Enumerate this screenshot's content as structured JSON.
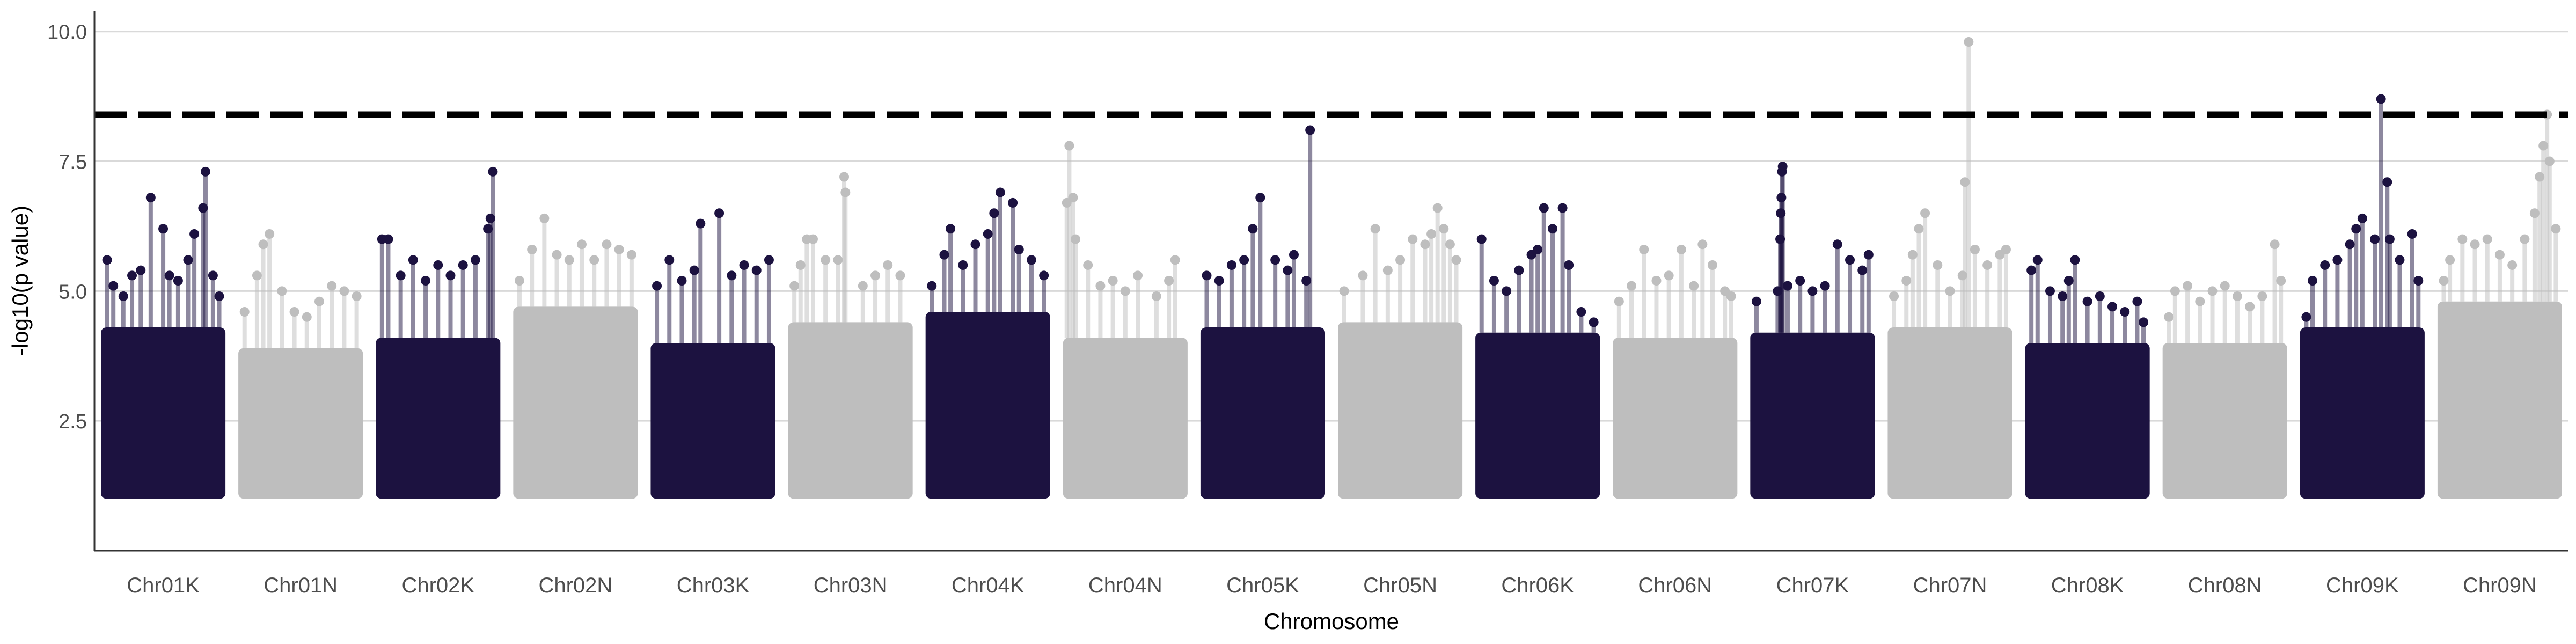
{
  "chart_data": {
    "type": "scatter",
    "title": "",
    "xlabel": "Chromosome",
    "ylabel": "-log10(p value)",
    "ylim": [
      0.0,
      10.4
    ],
    "yticks": [
      2.5,
      5.0,
      7.5,
      10.0
    ],
    "ytick_labels": [
      "2.5",
      "5.0",
      "7.5",
      "10.0"
    ],
    "grid": "horizontal-major",
    "threshold": 8.4,
    "colors": {
      "dark": "#1c1240",
      "light": "#bebebe",
      "threshold": "#000000",
      "grid": "#d9d9d9",
      "axis": "#333333"
    },
    "series": [
      {
        "name": "Chr01K",
        "color": "dark",
        "baseline_top": 4.3,
        "points": [
          [
            0.05,
            5.6
          ],
          [
            0.1,
            5.1
          ],
          [
            0.18,
            4.9
          ],
          [
            0.25,
            5.3
          ],
          [
            0.32,
            5.4
          ],
          [
            0.4,
            6.8
          ],
          [
            0.5,
            6.2
          ],
          [
            0.55,
            5.3
          ],
          [
            0.62,
            5.2
          ],
          [
            0.7,
            5.6
          ],
          [
            0.75,
            6.1
          ],
          [
            0.82,
            6.6
          ],
          [
            0.84,
            7.3
          ],
          [
            0.9,
            5.3
          ],
          [
            0.95,
            4.9
          ]
        ]
      },
      {
        "name": "Chr01N",
        "color": "light",
        "baseline_top": 3.9,
        "points": [
          [
            0.05,
            4.6
          ],
          [
            0.15,
            5.3
          ],
          [
            0.2,
            5.9
          ],
          [
            0.25,
            6.1
          ],
          [
            0.35,
            5.0
          ],
          [
            0.45,
            4.6
          ],
          [
            0.55,
            4.5
          ],
          [
            0.65,
            4.8
          ],
          [
            0.75,
            5.1
          ],
          [
            0.85,
            5.0
          ],
          [
            0.95,
            4.9
          ]
        ]
      },
      {
        "name": "Chr02K",
        "color": "dark",
        "baseline_top": 4.1,
        "points": [
          [
            0.05,
            6.0
          ],
          [
            0.1,
            6.0
          ],
          [
            0.2,
            5.3
          ],
          [
            0.3,
            5.6
          ],
          [
            0.4,
            5.2
          ],
          [
            0.5,
            5.5
          ],
          [
            0.6,
            5.3
          ],
          [
            0.7,
            5.5
          ],
          [
            0.8,
            5.6
          ],
          [
            0.9,
            6.2
          ],
          [
            0.92,
            6.4
          ],
          [
            0.94,
            7.3
          ]
        ]
      },
      {
        "name": "Chr02N",
        "color": "light",
        "baseline_top": 4.7,
        "points": [
          [
            0.05,
            5.2
          ],
          [
            0.15,
            5.8
          ],
          [
            0.25,
            6.4
          ],
          [
            0.35,
            5.7
          ],
          [
            0.45,
            5.6
          ],
          [
            0.55,
            5.9
          ],
          [
            0.65,
            5.6
          ],
          [
            0.75,
            5.9
          ],
          [
            0.85,
            5.8
          ],
          [
            0.95,
            5.7
          ]
        ]
      },
      {
        "name": "Chr03K",
        "color": "dark",
        "baseline_top": 4.0,
        "points": [
          [
            0.05,
            5.1
          ],
          [
            0.15,
            5.6
          ],
          [
            0.25,
            5.2
          ],
          [
            0.35,
            5.4
          ],
          [
            0.4,
            6.3
          ],
          [
            0.55,
            6.5
          ],
          [
            0.65,
            5.3
          ],
          [
            0.75,
            5.5
          ],
          [
            0.85,
            5.4
          ],
          [
            0.95,
            5.6
          ]
        ]
      },
      {
        "name": "Chr03N",
        "color": "light",
        "baseline_top": 4.4,
        "points": [
          [
            0.05,
            5.1
          ],
          [
            0.1,
            5.5
          ],
          [
            0.15,
            6.0
          ],
          [
            0.2,
            6.0
          ],
          [
            0.3,
            5.6
          ],
          [
            0.4,
            5.6
          ],
          [
            0.45,
            7.2
          ],
          [
            0.46,
            6.9
          ],
          [
            0.6,
            5.1
          ],
          [
            0.7,
            5.3
          ],
          [
            0.8,
            5.5
          ],
          [
            0.9,
            5.3
          ]
        ]
      },
      {
        "name": "Chr04K",
        "color": "dark",
        "baseline_top": 4.6,
        "points": [
          [
            0.05,
            5.1
          ],
          [
            0.15,
            5.7
          ],
          [
            0.2,
            6.2
          ],
          [
            0.3,
            5.5
          ],
          [
            0.4,
            5.9
          ],
          [
            0.5,
            6.1
          ],
          [
            0.55,
            6.5
          ],
          [
            0.6,
            6.9
          ],
          [
            0.7,
            6.7
          ],
          [
            0.75,
            5.8
          ],
          [
            0.85,
            5.6
          ],
          [
            0.95,
            5.3
          ]
        ]
      },
      {
        "name": "Chr04N",
        "color": "light",
        "baseline_top": 4.1,
        "points": [
          [
            0.03,
            6.7
          ],
          [
            0.05,
            7.8
          ],
          [
            0.08,
            6.8
          ],
          [
            0.1,
            6.0
          ],
          [
            0.2,
            5.5
          ],
          [
            0.3,
            5.1
          ],
          [
            0.4,
            5.2
          ],
          [
            0.5,
            5.0
          ],
          [
            0.6,
            5.3
          ],
          [
            0.75,
            4.9
          ],
          [
            0.85,
            5.2
          ],
          [
            0.9,
            5.6
          ]
        ]
      },
      {
        "name": "Chr05K",
        "color": "dark",
        "baseline_top": 4.3,
        "points": [
          [
            0.05,
            5.3
          ],
          [
            0.15,
            5.2
          ],
          [
            0.25,
            5.5
          ],
          [
            0.35,
            5.6
          ],
          [
            0.42,
            6.2
          ],
          [
            0.48,
            6.8
          ],
          [
            0.6,
            5.6
          ],
          [
            0.7,
            5.4
          ],
          [
            0.75,
            5.7
          ],
          [
            0.85,
            5.2
          ],
          [
            0.88,
            8.1
          ]
        ]
      },
      {
        "name": "Chr05N",
        "color": "light",
        "baseline_top": 4.4,
        "points": [
          [
            0.05,
            5.0
          ],
          [
            0.2,
            5.3
          ],
          [
            0.3,
            6.2
          ],
          [
            0.4,
            5.4
          ],
          [
            0.5,
            5.6
          ],
          [
            0.6,
            6.0
          ],
          [
            0.7,
            5.9
          ],
          [
            0.75,
            6.1
          ],
          [
            0.8,
            6.6
          ],
          [
            0.85,
            6.2
          ],
          [
            0.9,
            5.9
          ],
          [
            0.95,
            5.6
          ]
        ]
      },
      {
        "name": "Chr06K",
        "color": "dark",
        "baseline_top": 4.2,
        "points": [
          [
            0.05,
            6.0
          ],
          [
            0.15,
            5.2
          ],
          [
            0.25,
            5.0
          ],
          [
            0.35,
            5.4
          ],
          [
            0.45,
            5.7
          ],
          [
            0.5,
            5.8
          ],
          [
            0.55,
            6.6
          ],
          [
            0.62,
            6.2
          ],
          [
            0.7,
            6.6
          ],
          [
            0.75,
            5.5
          ],
          [
            0.85,
            4.6
          ],
          [
            0.95,
            4.4
          ]
        ]
      },
      {
        "name": "Chr06N",
        "color": "light",
        "baseline_top": 4.1,
        "points": [
          [
            0.05,
            4.8
          ],
          [
            0.15,
            5.1
          ],
          [
            0.25,
            5.8
          ],
          [
            0.35,
            5.2
          ],
          [
            0.45,
            5.3
          ],
          [
            0.55,
            5.8
          ],
          [
            0.65,
            5.1
          ],
          [
            0.72,
            5.9
          ],
          [
            0.8,
            5.5
          ],
          [
            0.9,
            5.0
          ],
          [
            0.95,
            4.9
          ]
        ]
      },
      {
        "name": "Chr07K",
        "color": "dark",
        "baseline_top": 4.2,
        "points": [
          [
            0.05,
            4.8
          ],
          [
            0.22,
            5.0
          ],
          [
            0.24,
            6.0
          ],
          [
            0.245,
            6.5
          ],
          [
            0.25,
            6.8
          ],
          [
            0.255,
            7.3
          ],
          [
            0.26,
            7.4
          ],
          [
            0.3,
            5.1
          ],
          [
            0.4,
            5.2
          ],
          [
            0.5,
            5.0
          ],
          [
            0.6,
            5.1
          ],
          [
            0.7,
            5.9
          ],
          [
            0.8,
            5.6
          ],
          [
            0.9,
            5.4
          ],
          [
            0.95,
            5.7
          ]
        ]
      },
      {
        "name": "Chr07N",
        "color": "light",
        "baseline_top": 4.3,
        "points": [
          [
            0.05,
            4.9
          ],
          [
            0.15,
            5.2
          ],
          [
            0.2,
            5.7
          ],
          [
            0.25,
            6.2
          ],
          [
            0.3,
            6.5
          ],
          [
            0.4,
            5.5
          ],
          [
            0.5,
            5.0
          ],
          [
            0.6,
            5.3
          ],
          [
            0.62,
            7.1
          ],
          [
            0.65,
            9.8
          ],
          [
            0.7,
            5.8
          ],
          [
            0.8,
            5.5
          ],
          [
            0.9,
            5.7
          ],
          [
            0.95,
            5.8
          ]
        ]
      },
      {
        "name": "Chr08K",
        "color": "dark",
        "baseline_top": 4.0,
        "points": [
          [
            0.05,
            5.4
          ],
          [
            0.1,
            5.6
          ],
          [
            0.2,
            5.0
          ],
          [
            0.3,
            4.9
          ],
          [
            0.35,
            5.2
          ],
          [
            0.4,
            5.6
          ],
          [
            0.5,
            4.8
          ],
          [
            0.6,
            4.9
          ],
          [
            0.7,
            4.7
          ],
          [
            0.8,
            4.6
          ],
          [
            0.9,
            4.8
          ],
          [
            0.95,
            4.4
          ]
        ]
      },
      {
        "name": "Chr08N",
        "color": "light",
        "baseline_top": 4.0,
        "points": [
          [
            0.05,
            4.5
          ],
          [
            0.1,
            5.0
          ],
          [
            0.2,
            5.1
          ],
          [
            0.3,
            4.8
          ],
          [
            0.4,
            5.0
          ],
          [
            0.5,
            5.1
          ],
          [
            0.6,
            4.9
          ],
          [
            0.7,
            4.7
          ],
          [
            0.8,
            4.9
          ],
          [
            0.9,
            5.9
          ],
          [
            0.95,
            5.2
          ]
        ]
      },
      {
        "name": "Chr09K",
        "color": "dark",
        "baseline_top": 4.3,
        "points": [
          [
            0.05,
            4.5
          ],
          [
            0.1,
            5.2
          ],
          [
            0.2,
            5.5
          ],
          [
            0.3,
            5.6
          ],
          [
            0.4,
            5.9
          ],
          [
            0.45,
            6.2
          ],
          [
            0.5,
            6.4
          ],
          [
            0.6,
            6.0
          ],
          [
            0.65,
            8.7
          ],
          [
            0.7,
            7.1
          ],
          [
            0.72,
            6.0
          ],
          [
            0.8,
            5.6
          ],
          [
            0.9,
            6.1
          ],
          [
            0.95,
            5.2
          ]
        ]
      },
      {
        "name": "Chr09N",
        "color": "light",
        "baseline_top": 4.8,
        "points": [
          [
            0.05,
            5.2
          ],
          [
            0.1,
            5.6
          ],
          [
            0.2,
            6.0
          ],
          [
            0.3,
            5.9
          ],
          [
            0.4,
            6.0
          ],
          [
            0.5,
            5.7
          ],
          [
            0.6,
            5.5
          ],
          [
            0.7,
            6.0
          ],
          [
            0.78,
            6.5
          ],
          [
            0.82,
            7.2
          ],
          [
            0.85,
            7.8
          ],
          [
            0.88,
            8.4
          ],
          [
            0.9,
            7.5
          ],
          [
            0.95,
            6.2
          ]
        ]
      }
    ]
  }
}
